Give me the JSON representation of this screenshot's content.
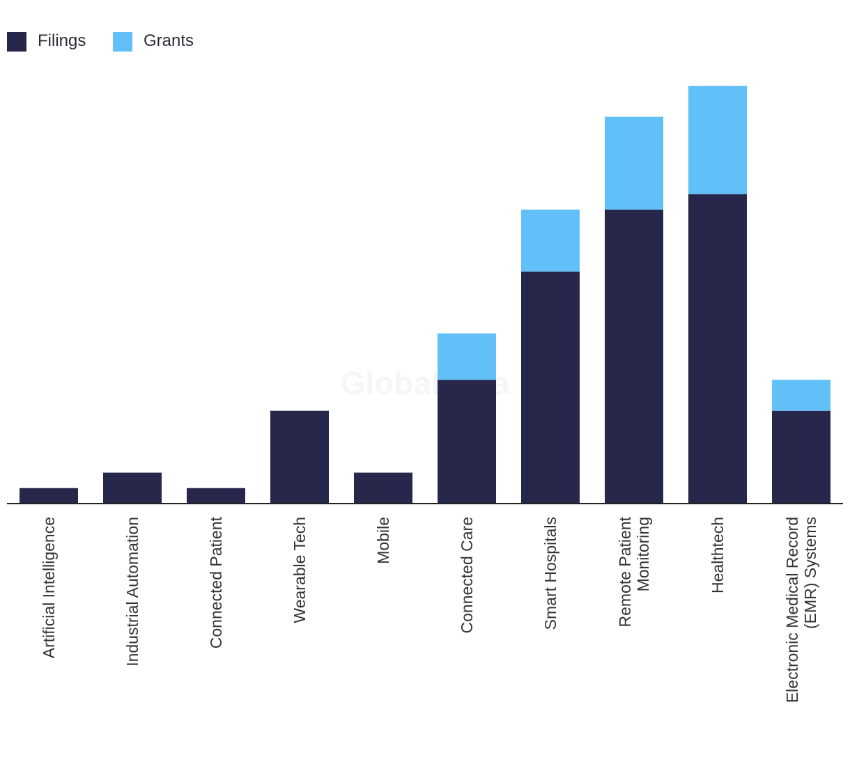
{
  "chart_data": {
    "type": "bar",
    "stacked": true,
    "title": "",
    "xlabel": "",
    "ylabel": "",
    "ylim": [
      0,
      28
    ],
    "categories": [
      [
        "Artificial Intelligence"
      ],
      [
        "Industrial Automation"
      ],
      [
        "Connected Patient"
      ],
      [
        "Wearable Tech"
      ],
      [
        "Mobile"
      ],
      [
        "Connected Care"
      ],
      [
        "Smart Hospitals"
      ],
      [
        "Remote Patient",
        "Monitoring"
      ],
      [
        "Healthtech"
      ],
      [
        "Electronic Medical Record",
        "(EMR) Systems"
      ]
    ],
    "series": [
      {
        "name": "Filings",
        "color": "#26274a",
        "values": [
          1,
          2,
          1,
          6,
          2,
          8,
          15,
          19,
          20,
          6
        ]
      },
      {
        "name": "Grants",
        "color": "#62c0f9",
        "values": [
          0,
          0,
          0,
          0,
          0,
          3,
          4,
          6,
          7,
          2
        ]
      }
    ],
    "legend_position": "top-left",
    "grid": false
  },
  "legend": {
    "filings_label": "Filings",
    "grants_label": "Grants",
    "filings_color": "#26274a",
    "grants_color": "#62c0f9"
  },
  "watermark": "GlobalData"
}
